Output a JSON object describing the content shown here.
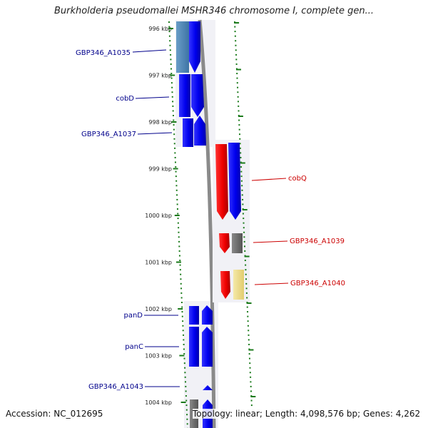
{
  "title": "Burkholderia pseudomallei MSHR346 chromosome I, complete gen...",
  "footer": {
    "accession": "Accession: NC_012695",
    "topology": "Topology: linear; Length: 4,098,576 bp; Genes: 4,262"
  },
  "ruler": {
    "ticks": [
      "996 kbp",
      "997 kbp",
      "998 kbp",
      "999 kbp",
      "1000 kbp",
      "1001 kbp",
      "1002 kbp",
      "1003 kbp",
      "1004 kbp"
    ]
  },
  "colors": {
    "cds_forward": "#0000ee",
    "cds_reverse": "#ee0000",
    "gene_gray": "#666666",
    "gene_light_blue": "#4a82b4",
    "gene_yellow": "#eedd88",
    "ruler_tick": "#1a7a1a",
    "label_forward": "#00008b",
    "label_reverse": "#cc0000",
    "backbone": "#8a8a8a"
  },
  "genes": {
    "forward": [
      {
        "name": "GBP346_A1035"
      },
      {
        "name": "cobD"
      },
      {
        "name": "GBP346_A1037"
      },
      {
        "name": "panD"
      },
      {
        "name": "panC"
      },
      {
        "name": "GBP346_A1043"
      }
    ],
    "reverse": [
      {
        "name": "cobQ"
      },
      {
        "name": "GBP346_A1039"
      },
      {
        "name": "GBP346_A1040"
      }
    ]
  }
}
